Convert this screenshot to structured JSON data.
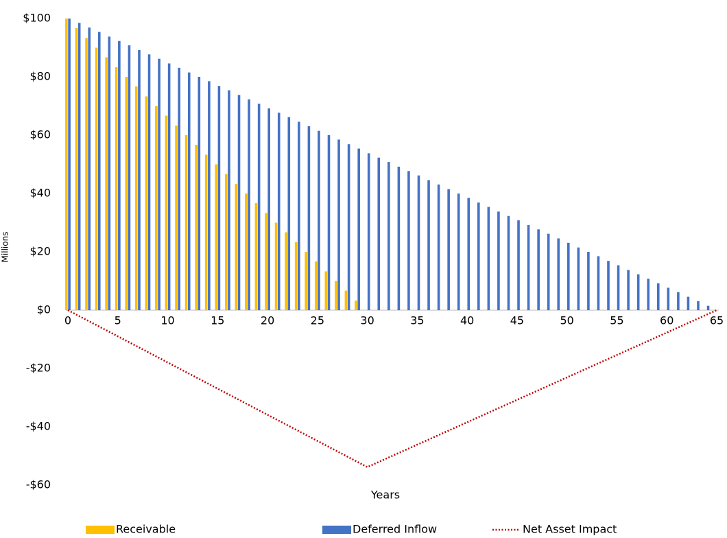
{
  "chart_data": {
    "type": "bar",
    "x_label": "Years",
    "y_label": "Millions",
    "xlim": [
      0,
      65
    ],
    "xticks": [
      0,
      5,
      10,
      15,
      20,
      25,
      30,
      35,
      40,
      45,
      50,
      55,
      60,
      65
    ],
    "ylim": [
      -60,
      100
    ],
    "yticks": [
      {
        "value": -60,
        "label": "-$60"
      },
      {
        "value": -40,
        "label": "-$40"
      },
      {
        "value": -20,
        "label": "-$20"
      },
      {
        "value": 0,
        "label": "$0"
      },
      {
        "value": 20,
        "label": "$20"
      },
      {
        "value": 40,
        "label": "$40"
      },
      {
        "value": 60,
        "label": "$60"
      },
      {
        "value": 80,
        "label": "$80"
      },
      {
        "value": 100,
        "label": "$100"
      }
    ],
    "grid": false,
    "legend": "bottom",
    "x": [
      0,
      1,
      2,
      3,
      4,
      5,
      6,
      7,
      8,
      9,
      10,
      11,
      12,
      13,
      14,
      15,
      16,
      17,
      18,
      19,
      20,
      21,
      22,
      23,
      24,
      25,
      26,
      27,
      28,
      29,
      30,
      31,
      32,
      33,
      34,
      35,
      36,
      37,
      38,
      39,
      40,
      41,
      42,
      43,
      44,
      45,
      46,
      47,
      48,
      49,
      50,
      51,
      52,
      53,
      54,
      55,
      56,
      57,
      58,
      59,
      60,
      61,
      62,
      63,
      64,
      65
    ],
    "series": [
      {
        "name": "Receivable",
        "type": "bar",
        "color": "#FFC000",
        "values": [
          100,
          96.7,
          93.3,
          90,
          86.7,
          83.3,
          80,
          76.7,
          73.3,
          70,
          66.7,
          63.3,
          60,
          56.7,
          53.3,
          50,
          46.7,
          43.3,
          40,
          36.7,
          33.3,
          30,
          26.7,
          23.3,
          20,
          16.7,
          13.3,
          10,
          6.7,
          3.3,
          0,
          0,
          0,
          0,
          0,
          0,
          0,
          0,
          0,
          0,
          0,
          0,
          0,
          0,
          0,
          0,
          0,
          0,
          0,
          0,
          0,
          0,
          0,
          0,
          0,
          0,
          0,
          0,
          0,
          0,
          0,
          0,
          0,
          0,
          0,
          0
        ]
      },
      {
        "name": "Deferred Inflow",
        "type": "bar",
        "color": "#4472C4",
        "values": [
          100,
          98.5,
          96.9,
          95.4,
          93.8,
          92.3,
          90.8,
          89.2,
          87.7,
          86.2,
          84.6,
          83.1,
          81.5,
          80,
          78.5,
          76.9,
          75.4,
          73.8,
          72.3,
          70.8,
          69.2,
          67.7,
          66.2,
          64.6,
          63.1,
          61.5,
          60,
          58.5,
          56.9,
          55.4,
          53.8,
          52.3,
          50.8,
          49.2,
          47.7,
          46.2,
          44.6,
          43.1,
          41.5,
          40,
          38.5,
          36.9,
          35.4,
          33.8,
          32.3,
          30.8,
          29.2,
          27.7,
          26.2,
          24.6,
          23.1,
          21.5,
          20,
          18.5,
          16.9,
          15.4,
          13.8,
          12.3,
          10.8,
          9.2,
          7.7,
          6.2,
          4.6,
          3.1,
          1.5,
          0
        ]
      },
      {
        "name": "Net Asset Impact",
        "type": "line",
        "color": "#C00000",
        "x": [
          0,
          30,
          65
        ],
        "values": [
          0,
          -53.8,
          0
        ]
      }
    ]
  }
}
